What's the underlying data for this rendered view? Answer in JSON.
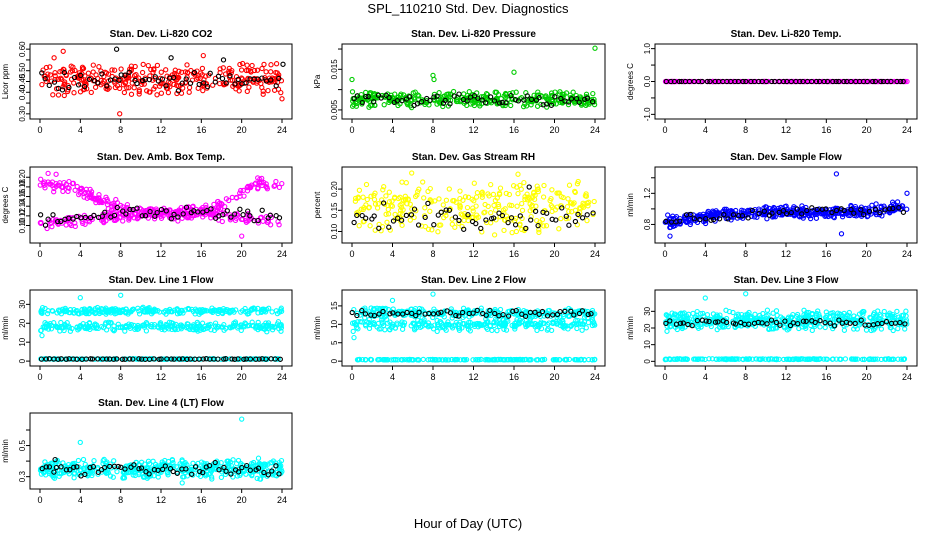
{
  "page_title": "SPL_110210  Std. Dev. Diagnostics",
  "x_axis_caption": "Hour of Day (UTC)",
  "colors": {
    "obs": "#000000",
    "red": "#ff0000",
    "green": "#00cc00",
    "magenta": "#ff00ff",
    "yellow": "#ffff00",
    "blue": "#0000ff",
    "cyan": "#00ffff"
  },
  "chart_data": [
    {
      "type": "scatter",
      "title": "Stan. Dev. Li-820 CO2",
      "ylabel": "Licor ppm",
      "color": "#ff0000",
      "xlim": [
        0,
        24
      ],
      "xticks": [
        0,
        4,
        8,
        12,
        16,
        20,
        24
      ],
      "ylim": [
        0.29,
        0.61
      ],
      "yticks": [
        0.3,
        0.35,
        0.4,
        0.45,
        0.5,
        0.55,
        0.6
      ],
      "ytick_labels": [
        "0.30",
        "",
        "0.40",
        "0.45",
        "0.50",
        "",
        "0.60"
      ],
      "series": [
        {
          "band": [
            0.38,
            0.54
          ],
          "n": 320,
          "outliers": [
            [
              1.4,
              0.56
            ],
            [
              2.3,
              0.59
            ],
            [
              7.9,
              0.3
            ],
            [
              16.2,
              0.57
            ],
            [
              24.0,
              0.37
            ]
          ]
        },
        {
          "band": [
            0.4,
            0.5
          ],
          "n": 60,
          "obs": true,
          "outliers": [
            [
              7.6,
              0.6
            ],
            [
              13.0,
              0.56
            ],
            [
              18.2,
              0.55
            ],
            [
              24.1,
              0.53
            ]
          ]
        }
      ]
    },
    {
      "type": "scatter",
      "title": "Stan. Dev. Li-820 Pressure",
      "ylabel": "kPa",
      "color": "#00cc00",
      "xlim": [
        0,
        24
      ],
      "xticks": [
        0,
        4,
        8,
        12,
        16,
        20,
        24
      ],
      "ylim": [
        0.0035,
        0.0205
      ],
      "yticks": [
        0.005,
        0.01,
        0.015,
        0.02
      ],
      "ytick_labels": [
        "0.005",
        "",
        "0.015",
        ""
      ],
      "series": [
        {
          "band": [
            0.0055,
            0.0098
          ],
          "n": 320,
          "outliers": [
            [
              0.0,
              0.0125
            ],
            [
              8.0,
              0.0135
            ],
            [
              8.1,
              0.0125
            ],
            [
              16.0,
              0.0143
            ],
            [
              24.0,
              0.0202
            ]
          ]
        },
        {
          "band": [
            0.0058,
            0.0092
          ],
          "n": 60,
          "obs": true,
          "outliers": []
        }
      ]
    },
    {
      "type": "scatter",
      "title": "Stan. Dev. Li-820 Temp.",
      "ylabel": "degrees C",
      "color": "#ff00ff",
      "xlim": [
        0,
        24
      ],
      "xticks": [
        0,
        4,
        8,
        12,
        16,
        20,
        24
      ],
      "ylim": [
        -1.05,
        1.05
      ],
      "yticks": [
        -1.0,
        -0.5,
        0.0,
        0.5,
        1.0
      ],
      "ytick_labels": [
        "-1.0",
        "",
        "0.0",
        "",
        "1.0"
      ],
      "series": [
        {
          "band": [
            0.0,
            0.0
          ],
          "n": 300,
          "outliers": []
        },
        {
          "band": [
            0.0,
            0.0
          ],
          "n": 60,
          "obs": true,
          "outliers": []
        }
      ]
    },
    {
      "type": "scatter",
      "title": "Stan. Dev. Amb. Box Temp.",
      "ylabel": "degrees C",
      "color": "#ff00ff",
      "xlim": [
        0,
        24
      ],
      "xticks": [
        0,
        4,
        8,
        12,
        16,
        20,
        24
      ],
      "ylim": [
        0.07,
        0.215
      ],
      "yticks": [
        0.1,
        0.12,
        0.14,
        0.16,
        0.18,
        0.2
      ],
      "ytick_labels": [
        "0.10",
        "0.12",
        "0.14",
        "0.16",
        "0.18",
        "0.20"
      ],
      "series": [
        {
          "curve": [
            [
              0,
              0.19
            ],
            [
              3,
              0.18
            ],
            [
              6,
              0.15
            ],
            [
              9,
              0.13
            ],
            [
              12,
              0.12
            ],
            [
              15,
              0.125
            ],
            [
              18,
              0.14
            ],
            [
              20,
              0.17
            ],
            [
              22,
              0.19
            ],
            [
              24,
              0.18
            ]
          ],
          "spread": 0.012,
          "n": 220,
          "outliers": [
            [
              0.8,
              0.208
            ],
            [
              1.6,
              0.206
            ],
            [
              20.0,
              0.078
            ]
          ]
        },
        {
          "curve": [
            [
              0,
              0.1
            ],
            [
              4,
              0.11
            ],
            [
              8,
              0.12
            ],
            [
              12,
              0.125
            ],
            [
              16,
              0.125
            ],
            [
              20,
              0.115
            ],
            [
              24,
              0.11
            ]
          ],
          "spread": 0.01,
          "n": 200,
          "outliers": []
        },
        {
          "curve": [
            [
              0,
              0.11
            ],
            [
              12,
              0.13
            ],
            [
              24,
              0.12
            ]
          ],
          "spread": 0.013,
          "n": 60,
          "obs": true,
          "outliers": []
        }
      ]
    },
    {
      "type": "scatter",
      "title": "Stan. Dev. Gas Stream RH",
      "ylabel": "percent",
      "color": "#ffff00",
      "xlim": [
        0,
        24
      ],
      "xticks": [
        0,
        4,
        8,
        12,
        16,
        20,
        24
      ],
      "ylim": [
        0.08,
        0.245
      ],
      "yticks": [
        0.1,
        0.15,
        0.2
      ],
      "ytick_labels": [
        "0.10",
        "0.15",
        "0.20"
      ],
      "series": [
        {
          "band": [
            0.09,
            0.23
          ],
          "n": 300,
          "outliers": [
            [
              5.9,
              0.238
            ],
            [
              16.4,
              0.235
            ]
          ]
        },
        {
          "band": [
            0.1,
            0.17
          ],
          "n": 55,
          "obs": true,
          "outliers": [
            [
              17.5,
              0.205
            ]
          ]
        }
      ]
    },
    {
      "type": "scatter",
      "title": "Stan. Dev. Sample Flow",
      "ylabel": "ml/min",
      "color": "#0000ff",
      "xlim": [
        0,
        24
      ],
      "xticks": [
        0,
        4,
        8,
        12,
        16,
        20,
        24
      ],
      "ylim": [
        0.6,
        1.5
      ],
      "yticks": [
        0.8,
        1.0,
        1.2,
        1.4
      ],
      "ytick_labels": [
        "0.8",
        "",
        "1.2",
        ""
      ],
      "series": [
        {
          "curve": [
            [
              0,
              0.83
            ],
            [
              6,
              0.93
            ],
            [
              12,
              0.96
            ],
            [
              18,
              0.95
            ],
            [
              24,
              1.03
            ]
          ],
          "spread": 0.07,
          "n": 420,
          "outliers": [
            [
              0.5,
              0.65
            ],
            [
              17.0,
              1.45
            ],
            [
              17.5,
              0.68
            ],
            [
              24.0,
              1.2
            ]
          ]
        },
        {
          "curve": [
            [
              0,
              0.85
            ],
            [
              12,
              0.95
            ],
            [
              24,
              1.0
            ]
          ],
          "spread": 0.05,
          "n": 50,
          "obs": true,
          "outliers": []
        }
      ]
    },
    {
      "type": "scatter",
      "title": "Stan. Dev. Line 1 Flow",
      "ylabel": "ml/min",
      "color": "#00ffff",
      "xlim": [
        0,
        24
      ],
      "xticks": [
        0,
        4,
        8,
        12,
        16,
        20,
        24
      ],
      "ylim": [
        -1,
        36
      ],
      "yticks": [
        0,
        10,
        20,
        30
      ],
      "ytick_labels": [
        "0",
        "10",
        "20",
        "30"
      ],
      "series": [
        {
          "band": [
            24.5,
            28.5
          ],
          "n": 260,
          "outliers": [
            [
              4.0,
              33.5
            ],
            [
              8.0,
              34.8
            ]
          ]
        },
        {
          "band": [
            15.5,
            21.0
          ],
          "n": 260,
          "outliers": [
            [
              0.2,
              13.5
            ]
          ]
        },
        {
          "band": [
            0.9,
            1.3
          ],
          "n": 160,
          "outliers": []
        },
        {
          "band": [
            0.9,
            1.3
          ],
          "n": 60,
          "obs": true,
          "outliers": []
        }
      ]
    },
    {
      "type": "scatter",
      "title": "Stan. Dev. Line 2 Flow",
      "ylabel": "ml/min",
      "color": "#00ffff",
      "xlim": [
        0,
        24
      ],
      "xticks": [
        0,
        4,
        8,
        12,
        16,
        20,
        24
      ],
      "ylim": [
        -0.5,
        18.5
      ],
      "yticks": [
        0,
        5,
        10,
        15
      ],
      "ytick_labels": [
        "0",
        "5",
        "10",
        "15"
      ],
      "series": [
        {
          "band": [
            11.6,
            14.6
          ],
          "n": 260,
          "outliers": [
            [
              4.0,
              16.5
            ],
            [
              8.0,
              18.2
            ]
          ]
        },
        {
          "band": [
            8.0,
            11.8
          ],
          "n": 260,
          "outliers": [
            [
              0.2,
              6.4
            ]
          ]
        },
        {
          "band": [
            0.3,
            0.5
          ],
          "n": 160,
          "outliers": []
        },
        {
          "band": [
            11.8,
            14.0
          ],
          "n": 55,
          "obs": true,
          "outliers": []
        }
      ]
    },
    {
      "type": "scatter",
      "title": "Stan. Dev. Line 3 Flow",
      "ylabel": "ml/min",
      "color": "#00ffff",
      "xlim": [
        0,
        24
      ],
      "xticks": [
        0,
        4,
        8,
        12,
        16,
        20,
        24
      ],
      "ylim": [
        -1,
        41
      ],
      "yticks": [
        0,
        10,
        20,
        30
      ],
      "ytick_labels": [
        "0",
        "10",
        "20",
        "30"
      ],
      "series": [
        {
          "band": [
            18.0,
            31.0
          ],
          "n": 480,
          "outliers": [
            [
              4.0,
              38.0
            ],
            [
              8.0,
              40.5
            ],
            [
              0.2,
              18.0
            ]
          ]
        },
        {
          "band": [
            1.0,
            1.6
          ],
          "n": 160,
          "outliers": []
        },
        {
          "band": [
            21.0,
            25.5
          ],
          "n": 55,
          "obs": true,
          "outliers": []
        }
      ]
    },
    {
      "type": "scatter",
      "title": "Stan. Dev. Line 4 (LT) Flow",
      "ylabel": "ml/min",
      "color": "#00ffff",
      "xlim": [
        0,
        24
      ],
      "xticks": [
        0,
        4,
        8,
        12,
        16,
        20,
        24
      ],
      "ylim": [
        0.24,
        0.69
      ],
      "yticks": [
        0.3,
        0.4,
        0.5,
        0.6
      ],
      "ytick_labels": [
        "0.3",
        "",
        "0.5",
        ""
      ],
      "series": [
        {
          "band": [
            0.28,
            0.42
          ],
          "n": 440,
          "outliers": [
            [
              4.0,
              0.52
            ],
            [
              14.1,
              0.26
            ],
            [
              20.0,
              0.67
            ]
          ]
        },
        {
          "band": [
            0.3,
            0.4
          ],
          "n": 60,
          "obs": true,
          "outliers": [
            [
              1.5,
              0.41
            ]
          ]
        }
      ]
    }
  ]
}
